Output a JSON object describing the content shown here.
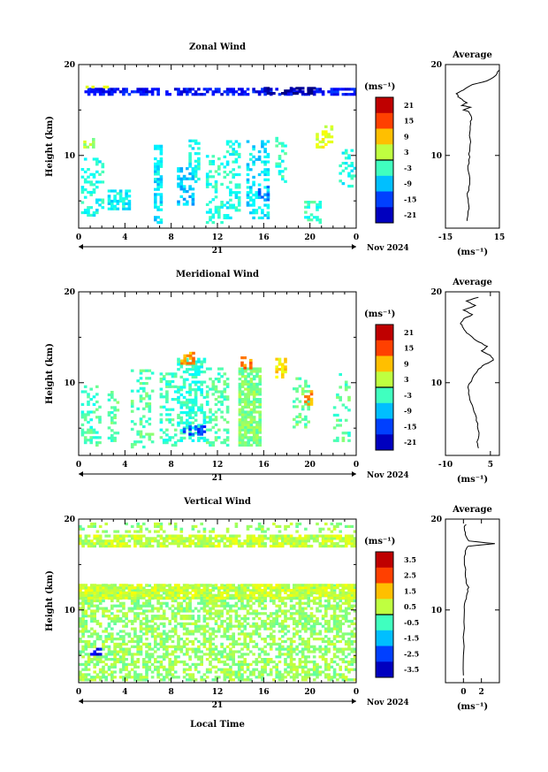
{
  "xlabel": "Local Time",
  "date_label": "Nov 2024",
  "day_label": "21",
  "chart_data": [
    {
      "type": "heatmap",
      "title": "Zonal Wind",
      "ylabel": "Height (km)",
      "unit_label": "(ms⁻¹)",
      "xlim": [
        0,
        24
      ],
      "ylim": [
        2,
        20
      ],
      "x_ticks": [
        "0",
        "4",
        "8",
        "12",
        "16",
        "20",
        "0"
      ],
      "y_ticks": [
        "10",
        "20"
      ],
      "colorbar": {
        "range": [
          -24,
          24
        ],
        "ticks": [
          "21",
          "15",
          "9",
          "3",
          "-3",
          "-9",
          "-15",
          "-21"
        ]
      },
      "regions": [
        {
          "t0": 0.2,
          "t1": 2.0,
          "h0": 3.3,
          "h1": 9.5,
          "v": -5,
          "d": 0.35
        },
        {
          "t0": 0.4,
          "t1": 1.2,
          "h0": 10.8,
          "h1": 11.8,
          "v": 2,
          "d": 0.6
        },
        {
          "t0": 2.5,
          "t1": 4.5,
          "h0": 4.0,
          "h1": 6.0,
          "v": -6,
          "d": 0.7
        },
        {
          "t0": 6.5,
          "t1": 7.2,
          "h0": 2.5,
          "h1": 11.0,
          "v": -7,
          "d": 0.5
        },
        {
          "t0": 8.5,
          "t1": 10.0,
          "h0": 4.5,
          "h1": 8.5,
          "v": -9,
          "d": 0.55
        },
        {
          "t0": 9.5,
          "t1": 10.5,
          "h0": 7.0,
          "h1": 11.5,
          "v": -5,
          "d": 0.4
        },
        {
          "t0": 11.0,
          "t1": 12.5,
          "h0": 2.5,
          "h1": 10.0,
          "v": -4,
          "d": 0.3
        },
        {
          "t0": 12.5,
          "t1": 14.0,
          "h0": 3.0,
          "h1": 11.5,
          "v": -5,
          "d": 0.35
        },
        {
          "t0": 14.5,
          "t1": 16.5,
          "h0": 3.0,
          "h1": 11.5,
          "v": -7,
          "d": 0.35
        },
        {
          "t0": 15.5,
          "t1": 16.5,
          "h0": 5.0,
          "h1": 6.5,
          "v": -12,
          "d": 0.6
        },
        {
          "t0": 17.0,
          "t1": 18.0,
          "h0": 7.0,
          "h1": 11.8,
          "v": -4,
          "d": 0.3
        },
        {
          "t0": 19.5,
          "t1": 21.0,
          "h0": 2.5,
          "h1": 5.0,
          "v": -4,
          "d": 0.35
        },
        {
          "t0": 20.5,
          "t1": 21.8,
          "h0": 10.8,
          "h1": 13.2,
          "v": 5,
          "d": 0.55
        },
        {
          "t0": 22.5,
          "t1": 24.0,
          "h0": 6.5,
          "h1": 10.5,
          "v": -5,
          "d": 0.3
        },
        {
          "t0": 0.5,
          "t1": 24.0,
          "h0": 16.6,
          "h1": 17.4,
          "v": -18,
          "d": 0.6
        },
        {
          "t0": 16.0,
          "t1": 20.5,
          "h0": 16.7,
          "h1": 17.4,
          "v": -24,
          "d": 0.5
        },
        {
          "t0": 0.6,
          "t1": 2.5,
          "h0": 17.4,
          "h1": 17.9,
          "v": 3,
          "d": 0.4
        }
      ]
    },
    {
      "type": "heatmap",
      "title": "Meridional Wind",
      "ylabel": "Height (km)",
      "unit_label": "(ms⁻¹)",
      "xlim": [
        0,
        24
      ],
      "ylim": [
        2,
        20
      ],
      "x_ticks": [
        "0",
        "4",
        "8",
        "12",
        "16",
        "20",
        "0"
      ],
      "y_ticks": [
        "10",
        "20"
      ],
      "colorbar": {
        "range": [
          -24,
          24
        ],
        "ticks": [
          "21",
          "15",
          "9",
          "3",
          "-3",
          "-9",
          "-15",
          "-21"
        ]
      },
      "regions": [
        {
          "t0": 0.2,
          "t1": 1.8,
          "h0": 3.0,
          "h1": 9.5,
          "v": -3,
          "d": 0.4
        },
        {
          "t0": 2.5,
          "t1": 3.5,
          "h0": 3.5,
          "h1": 9.0,
          "v": -2,
          "d": 0.35
        },
        {
          "t0": 4.5,
          "t1": 6.5,
          "h0": 2.8,
          "h1": 11.5,
          "v": -2,
          "d": 0.25
        },
        {
          "t0": 7.0,
          "t1": 8.5,
          "h0": 3.0,
          "h1": 11.0,
          "v": -3,
          "d": 0.35
        },
        {
          "t0": 8.5,
          "t1": 11.0,
          "h0": 3.5,
          "h1": 12.5,
          "v": -4,
          "d": 0.5
        },
        {
          "t0": 9.0,
          "t1": 11.0,
          "h0": 4.2,
          "h1": 5.2,
          "v": -14,
          "d": 0.6
        },
        {
          "t0": 8.8,
          "t1": 10.0,
          "h0": 12.0,
          "h1": 13.2,
          "v": 11,
          "d": 0.7
        },
        {
          "t0": 11.0,
          "t1": 13.0,
          "h0": 3.0,
          "h1": 11.5,
          "v": -2,
          "d": 0.3
        },
        {
          "t0": 13.8,
          "t1": 15.8,
          "h0": 3.0,
          "h1": 11.5,
          "v": 0,
          "d": 0.85
        },
        {
          "t0": 14.0,
          "t1": 15.0,
          "h0": 11.5,
          "h1": 12.8,
          "v": 12,
          "d": 0.7
        },
        {
          "t0": 17.0,
          "t1": 18.0,
          "h0": 10.5,
          "h1": 12.5,
          "v": 7,
          "d": 0.6
        },
        {
          "t0": 18.5,
          "t1": 19.8,
          "h0": 5.0,
          "h1": 10.5,
          "v": -1,
          "d": 0.3
        },
        {
          "t0": 19.5,
          "t1": 20.2,
          "h0": 7.5,
          "h1": 9.0,
          "v": 11,
          "d": 0.6
        },
        {
          "t0": 22.0,
          "t1": 23.5,
          "h0": 3.5,
          "h1": 11.0,
          "v": -2,
          "d": 0.2
        }
      ]
    },
    {
      "type": "heatmap",
      "title": "Vertical Wind",
      "ylabel": "Height (km)",
      "unit_label": "(ms⁻¹)",
      "xlim": [
        0,
        24
      ],
      "ylim": [
        2,
        20
      ],
      "x_ticks": [
        "0",
        "4",
        "8",
        "12",
        "16",
        "20",
        "0"
      ],
      "y_ticks": [
        "10",
        "20"
      ],
      "colorbar": {
        "range": [
          -4,
          4
        ],
        "ticks": [
          "3.5",
          "2.5",
          "1.5",
          "0.5",
          "-0.5",
          "-1.5",
          "-2.5",
          "-3.5"
        ]
      },
      "regions": [
        {
          "t0": 0.0,
          "t1": 24.0,
          "h0": 2.2,
          "h1": 12.8,
          "v": 0.2,
          "d": 0.55
        },
        {
          "t0": 0.0,
          "t1": 24.0,
          "h0": 11.2,
          "h1": 12.8,
          "v": 0.6,
          "d": 0.75
        },
        {
          "t0": 0.0,
          "t1": 24.0,
          "h0": 16.9,
          "h1": 18.1,
          "v": 0.5,
          "d": 0.8
        },
        {
          "t0": 0.0,
          "t1": 24.0,
          "h0": 18.5,
          "h1": 19.6,
          "v": 0.2,
          "d": 0.25
        },
        {
          "t0": 1.0,
          "t1": 1.8,
          "h0": 5.0,
          "h1": 5.6,
          "v": -3.2,
          "d": 0.7
        }
      ]
    }
  ],
  "average_profiles": [
    {
      "title": "Average",
      "unit_label": "(ms⁻¹)",
      "xlim": [
        -15,
        15
      ],
      "x_ticks": [
        {
          "v": -15,
          "t": "-15"
        },
        {
          "v": 15,
          "t": "15"
        }
      ],
      "y_ticks": [
        "10",
        "20"
      ],
      "profile": [
        [
          -3.0,
          2.8
        ],
        [
          -2.5,
          3.5
        ],
        [
          -2.0,
          4.5
        ],
        [
          -2.8,
          5.5
        ],
        [
          -2.0,
          6.5
        ],
        [
          -1.5,
          7.5
        ],
        [
          -2.5,
          8.5
        ],
        [
          -2.0,
          9.5
        ],
        [
          -1.5,
          10.5
        ],
        [
          -1.0,
          11.5
        ],
        [
          -1.5,
          12.5
        ],
        [
          -1.0,
          13.5
        ],
        [
          -0.5,
          14.2
        ],
        [
          -2.0,
          14.8
        ],
        [
          -5.0,
          15.0
        ],
        [
          -1.0,
          15.3
        ],
        [
          -6.0,
          15.5
        ],
        [
          -3.0,
          15.8
        ],
        [
          -5.0,
          16.0
        ],
        [
          -7.0,
          16.3
        ],
        [
          -8.0,
          16.5
        ],
        [
          -9.0,
          16.8
        ],
        [
          -5.0,
          17.2
        ],
        [
          0.0,
          17.8
        ],
        [
          8.0,
          18.2
        ],
        [
          13.0,
          18.8
        ],
        [
          15.0,
          19.4
        ]
      ]
    },
    {
      "title": "Average",
      "unit_label": "(ms⁻¹)",
      "xlim": [
        -10,
        8
      ],
      "x_ticks": [
        {
          "v": -10,
          "t": "-10"
        },
        {
          "v": 5,
          "t": "5"
        }
      ],
      "y_ticks": [
        "10",
        "20"
      ],
      "profile": [
        [
          1.0,
          2.8
        ],
        [
          0.5,
          3.5
        ],
        [
          1.2,
          4.5
        ],
        [
          0.8,
          5.5
        ],
        [
          0.0,
          6.5
        ],
        [
          -1.0,
          7.5
        ],
        [
          -2.0,
          8.5
        ],
        [
          -2.5,
          9.5
        ],
        [
          -1.0,
          10.5
        ],
        [
          1.0,
          11.5
        ],
        [
          3.0,
          12.0
        ],
        [
          6.0,
          12.5
        ],
        [
          5.0,
          13.0
        ],
        [
          2.0,
          13.5
        ],
        [
          4.0,
          14.0
        ],
        [
          1.0,
          14.5
        ],
        [
          -1.0,
          15.0
        ],
        [
          -3.0,
          15.5
        ],
        [
          -4.0,
          16.0
        ],
        [
          -5.0,
          16.5
        ],
        [
          -4.0,
          17.0
        ],
        [
          -1.0,
          17.5
        ],
        [
          -4.0,
          18.0
        ],
        [
          0.0,
          18.5
        ],
        [
          -3.0,
          19.0
        ],
        [
          1.0,
          19.4
        ]
      ]
    },
    {
      "title": "Average",
      "unit_label": "(ms⁻¹)",
      "xlim": [
        -2,
        4
      ],
      "x_ticks": [
        {
          "v": 0,
          "t": "0"
        },
        {
          "v": 2,
          "t": "2"
        }
      ],
      "y_ticks": [
        "10",
        "20"
      ],
      "profile": [
        [
          0.0,
          2.8
        ],
        [
          0.0,
          5.0
        ],
        [
          0.1,
          8.0
        ],
        [
          0.1,
          10.0
        ],
        [
          0.2,
          11.0
        ],
        [
          0.4,
          11.8
        ],
        [
          0.6,
          12.5
        ],
        [
          0.3,
          13.0
        ],
        [
          0.2,
          14.0
        ],
        [
          0.1,
          15.5
        ],
        [
          0.2,
          16.5
        ],
        [
          0.5,
          17.0
        ],
        [
          3.5,
          17.3
        ],
        [
          0.6,
          17.6
        ],
        [
          0.2,
          18.3
        ],
        [
          0.1,
          19.0
        ],
        [
          0.3,
          19.4
        ]
      ]
    }
  ]
}
